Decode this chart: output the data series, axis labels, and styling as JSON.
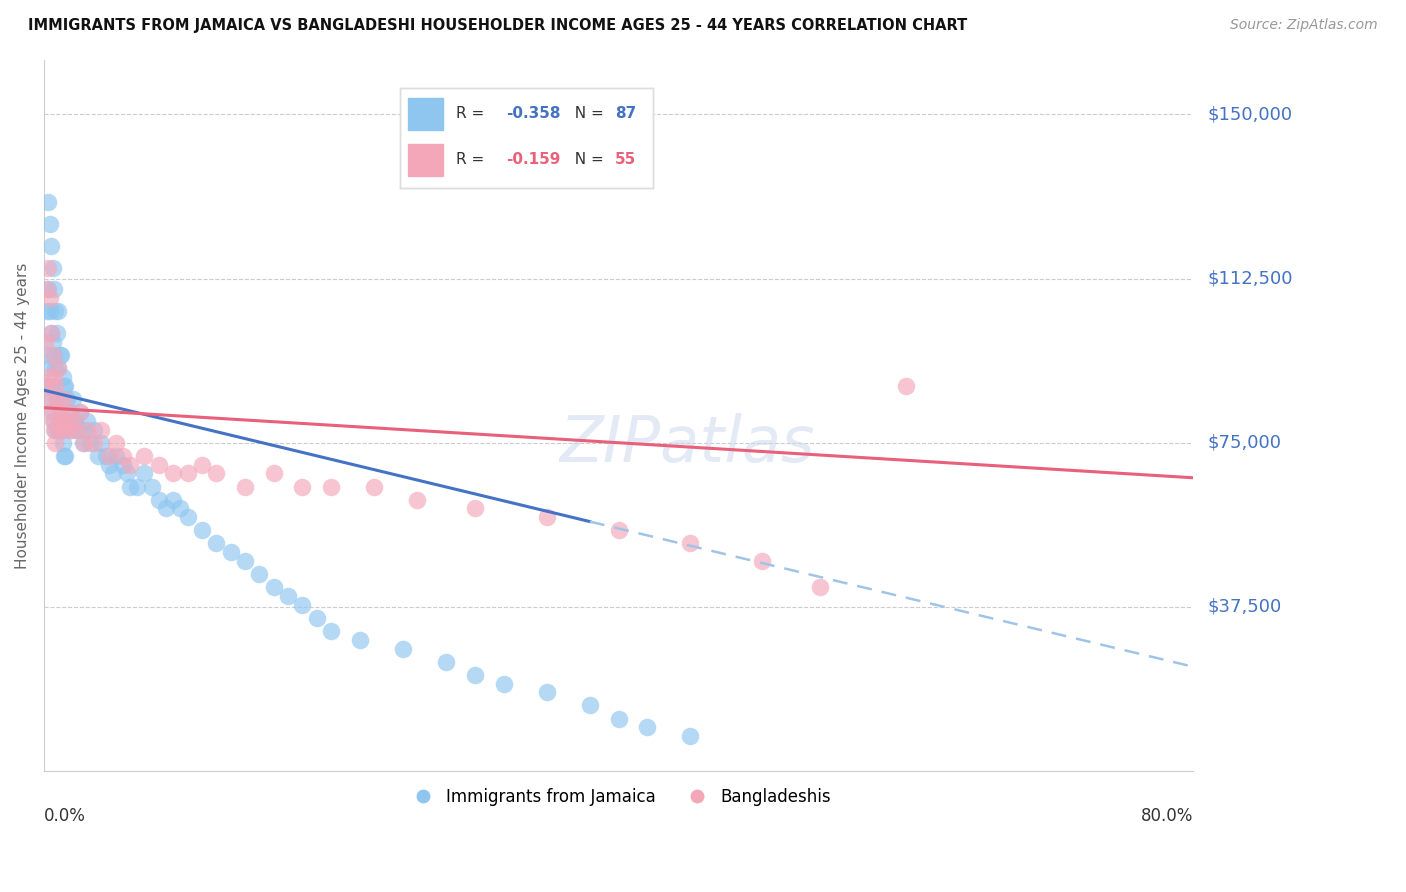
{
  "title": "IMMIGRANTS FROM JAMAICA VS BANGLADESHI HOUSEHOLDER INCOME AGES 25 - 44 YEARS CORRELATION CHART",
  "source": "Source: ZipAtlas.com",
  "ylabel": "Householder Income Ages 25 - 44 years",
  "ytick_labels": [
    "$150,000",
    "$112,500",
    "$75,000",
    "$37,500"
  ],
  "ytick_values": [
    150000,
    112500,
    75000,
    37500
  ],
  "ylim": [
    0,
    162500
  ],
  "xlim": [
    0.0,
    0.8
  ],
  "watermark": "ZIPatlas",
  "jamaica_color": "#8EC6F0",
  "jamaica_line_color": "#4472C4",
  "jamaica_line_dash_color": "#A0C4E8",
  "bangla_color": "#F4A7B9",
  "bangla_line_color": "#E8607A",
  "jamaica_name": "Immigrants from Jamaica",
  "bangla_name": "Bangladeshis",
  "jamaica_R": "-0.358",
  "jamaica_N": "87",
  "bangla_R": "-0.159",
  "bangla_N": "55",
  "jamaica_x": [
    0.001,
    0.002,
    0.002,
    0.003,
    0.003,
    0.003,
    0.004,
    0.004,
    0.004,
    0.005,
    0.005,
    0.005,
    0.006,
    0.006,
    0.006,
    0.007,
    0.007,
    0.007,
    0.008,
    0.008,
    0.008,
    0.009,
    0.009,
    0.01,
    0.01,
    0.01,
    0.011,
    0.011,
    0.012,
    0.012,
    0.013,
    0.013,
    0.014,
    0.014,
    0.015,
    0.015,
    0.016,
    0.017,
    0.018,
    0.019,
    0.02,
    0.021,
    0.022,
    0.023,
    0.025,
    0.027,
    0.028,
    0.03,
    0.032,
    0.035,
    0.038,
    0.04,
    0.043,
    0.045,
    0.048,
    0.05,
    0.055,
    0.058,
    0.06,
    0.065,
    0.07,
    0.075,
    0.08,
    0.085,
    0.09,
    0.095,
    0.1,
    0.11,
    0.12,
    0.13,
    0.14,
    0.15,
    0.16,
    0.17,
    0.18,
    0.19,
    0.2,
    0.22,
    0.25,
    0.28,
    0.3,
    0.32,
    0.35,
    0.38,
    0.4,
    0.42,
    0.45
  ],
  "jamaica_y": [
    95000,
    105000,
    88000,
    130000,
    110000,
    92000,
    125000,
    105000,
    88000,
    120000,
    100000,
    85000,
    115000,
    98000,
    82000,
    110000,
    95000,
    80000,
    105000,
    92000,
    78000,
    100000,
    85000,
    105000,
    92000,
    78000,
    95000,
    80000,
    95000,
    78000,
    90000,
    75000,
    88000,
    72000,
    88000,
    72000,
    85000,
    80000,
    82000,
    78000,
    85000,
    80000,
    80000,
    78000,
    82000,
    75000,
    78000,
    80000,
    75000,
    78000,
    72000,
    75000,
    72000,
    70000,
    68000,
    72000,
    70000,
    68000,
    65000,
    65000,
    68000,
    65000,
    62000,
    60000,
    62000,
    60000,
    58000,
    55000,
    52000,
    50000,
    48000,
    45000,
    42000,
    40000,
    38000,
    35000,
    32000,
    30000,
    28000,
    25000,
    22000,
    20000,
    18000,
    15000,
    12000,
    10000,
    8000
  ],
  "bangla_x": [
    0.001,
    0.002,
    0.002,
    0.003,
    0.003,
    0.004,
    0.004,
    0.005,
    0.005,
    0.006,
    0.006,
    0.007,
    0.007,
    0.008,
    0.008,
    0.009,
    0.01,
    0.01,
    0.011,
    0.012,
    0.013,
    0.014,
    0.015,
    0.017,
    0.018,
    0.02,
    0.022,
    0.025,
    0.028,
    0.03,
    0.035,
    0.04,
    0.045,
    0.05,
    0.055,
    0.06,
    0.07,
    0.08,
    0.09,
    0.1,
    0.11,
    0.12,
    0.14,
    0.16,
    0.18,
    0.2,
    0.23,
    0.26,
    0.3,
    0.35,
    0.4,
    0.45,
    0.5,
    0.54,
    0.6
  ],
  "bangla_y": [
    98000,
    110000,
    88000,
    115000,
    90000,
    108000,
    85000,
    100000,
    82000,
    95000,
    80000,
    90000,
    78000,
    88000,
    75000,
    85000,
    92000,
    78000,
    82000,
    80000,
    78000,
    85000,
    80000,
    82000,
    78000,
    80000,
    78000,
    82000,
    75000,
    78000,
    75000,
    78000,
    72000,
    75000,
    72000,
    70000,
    72000,
    70000,
    68000,
    68000,
    70000,
    68000,
    65000,
    68000,
    65000,
    65000,
    65000,
    62000,
    60000,
    58000,
    55000,
    52000,
    48000,
    42000,
    88000
  ]
}
